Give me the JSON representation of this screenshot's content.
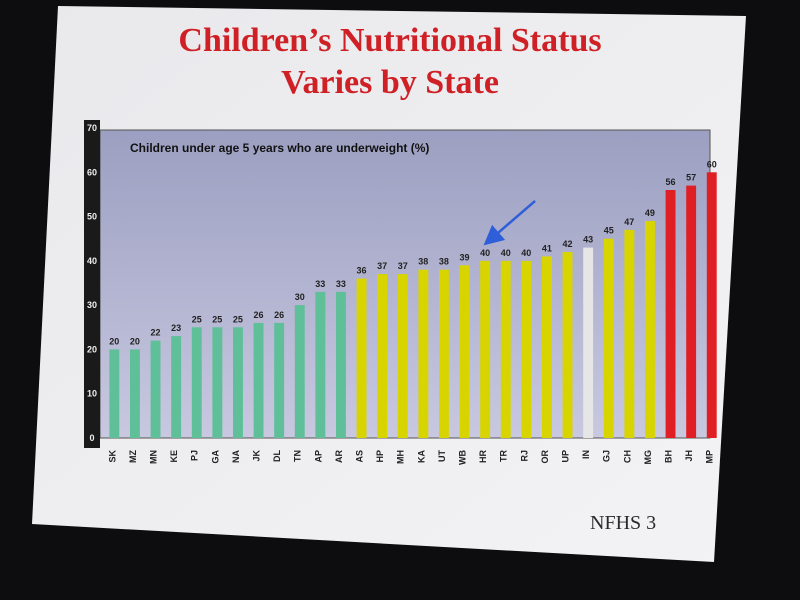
{
  "slide": {
    "title_line1": "Children’s Nutritional Status",
    "title_line2": "Varies by State",
    "source": "NFHS 3"
  },
  "colors": {
    "green": "#5fbf98",
    "yellow": "#d8d400",
    "white": "#e6e6e6",
    "red": "#e01f25",
    "plot_bg_top": "#9c9fc1",
    "plot_bg_bottom": "#c8c8e0",
    "arrow": "#2f5fd8"
  },
  "chart_data": {
    "type": "bar",
    "title": "Children under age 5 years who are underweight (%)",
    "ylim": [
      0,
      70
    ],
    "yticks": [
      0,
      10,
      20,
      30,
      40,
      50,
      60,
      70
    ],
    "categories": [
      "SK",
      "MZ",
      "MN",
      "KE",
      "PJ",
      "GA",
      "NA",
      "JK",
      "DL",
      "TN",
      "AP",
      "AR",
      "AS",
      "HP",
      "MH",
      "KA",
      "UT",
      "WB",
      "HR",
      "TR",
      "RJ",
      "OR",
      "UP",
      "IN",
      "GJ",
      "CH",
      "MG",
      "BH",
      "JH",
      "MP"
    ],
    "values": [
      20,
      20,
      22,
      23,
      25,
      25,
      25,
      26,
      26,
      30,
      33,
      33,
      36,
      37,
      37,
      38,
      38,
      39,
      40,
      40,
      40,
      41,
      42,
      43,
      45,
      47,
      49,
      56,
      57,
      60
    ],
    "bar_colors": [
      "green",
      "green",
      "green",
      "green",
      "green",
      "green",
      "green",
      "green",
      "green",
      "green",
      "green",
      "green",
      "yellow",
      "yellow",
      "yellow",
      "yellow",
      "yellow",
      "yellow",
      "yellow",
      "yellow",
      "yellow",
      "yellow",
      "yellow",
      "white",
      "yellow",
      "yellow",
      "yellow",
      "red",
      "red",
      "red"
    ],
    "annotation": {
      "type": "arrow",
      "points_to": "HR"
    },
    "grid": false
  }
}
